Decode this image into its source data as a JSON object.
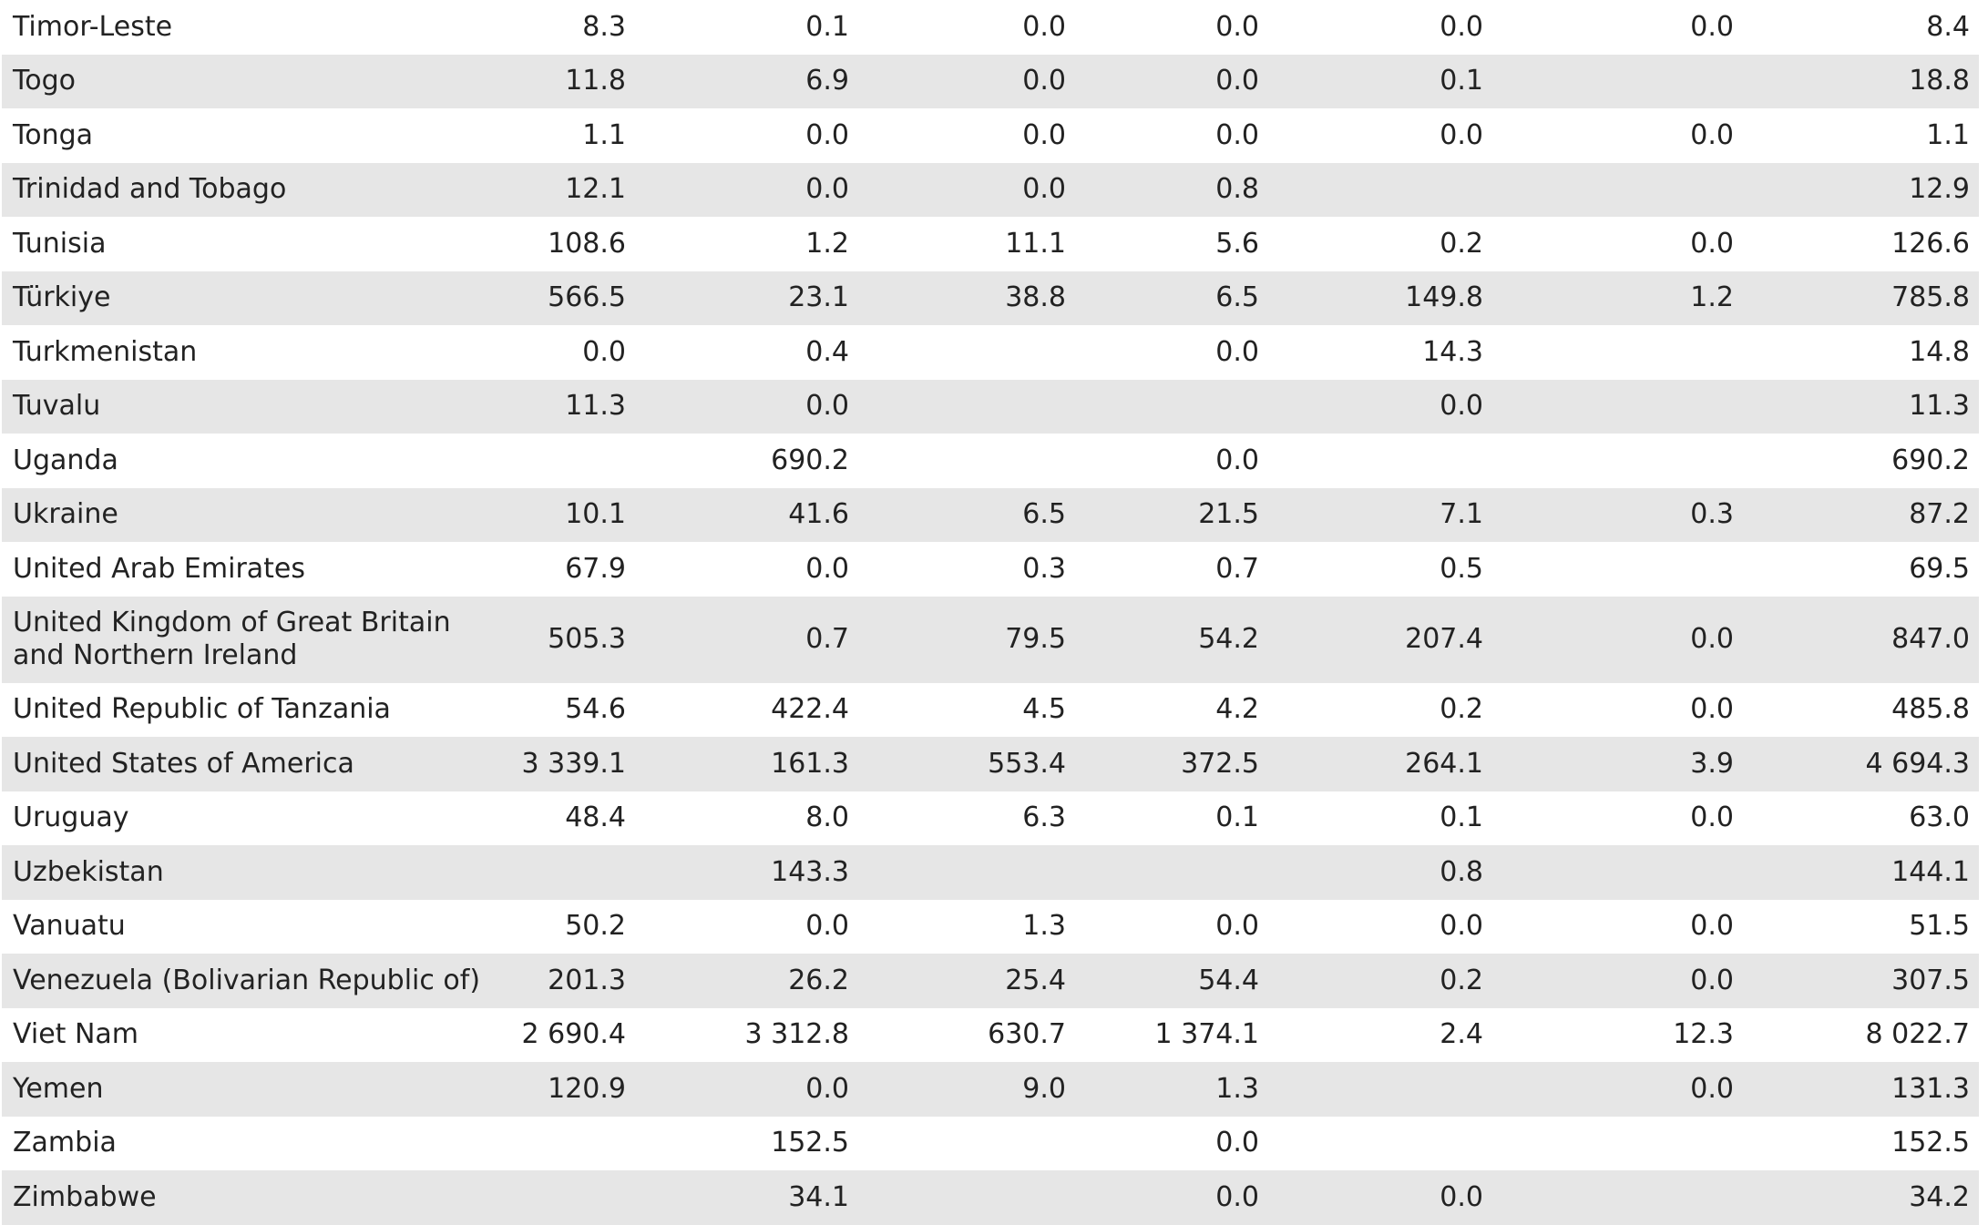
{
  "rows": [
    {
      "country": "Timor-Leste",
      "values": [
        "8.3",
        "0.1",
        "0.0",
        "0.0",
        "0.0",
        "0.0",
        "8.4"
      ]
    },
    {
      "country": "Togo",
      "values": [
        "11.8",
        "6.9",
        "0.0",
        "0.0",
        "0.1",
        "",
        "18.8"
      ]
    },
    {
      "country": "Tonga",
      "values": [
        "1.1",
        "0.0",
        "0.0",
        "0.0",
        "0.0",
        "0.0",
        "1.1"
      ]
    },
    {
      "country": "Trinidad and Tobago",
      "values": [
        "12.1",
        "0.0",
        "0.0",
        "0.8",
        "",
        "",
        "12.9"
      ]
    },
    {
      "country": "Tunisia",
      "values": [
        "108.6",
        "1.2",
        "11.1",
        "5.6",
        "0.2",
        "0.0",
        "126.6"
      ]
    },
    {
      "country": "Türkiye",
      "values": [
        "566.5",
        "23.1",
        "38.8",
        "6.5",
        "149.8",
        "1.2",
        "785.8"
      ]
    },
    {
      "country": "Turkmenistan",
      "values": [
        "0.0",
        "0.4",
        "",
        "0.0",
        "14.3",
        "",
        "14.8"
      ]
    },
    {
      "country": "Tuvalu",
      "values": [
        "11.3",
        "0.0",
        "",
        "",
        "0.0",
        "",
        "11.3"
      ]
    },
    {
      "country": "Uganda",
      "values": [
        "",
        "690.2",
        "",
        "0.0",
        "",
        "",
        "690.2"
      ]
    },
    {
      "country": "Ukraine",
      "values": [
        "10.1",
        "41.6",
        "6.5",
        "21.5",
        "7.1",
        "0.3",
        "87.2"
      ]
    },
    {
      "country": "United Arab Emirates",
      "values": [
        "67.9",
        "0.0",
        "0.3",
        "0.7",
        "0.5",
        "",
        "69.5"
      ]
    },
    {
      "country": "United Kingdom of Great Britain and Northern Ireland",
      "values": [
        "505.3",
        "0.7",
        "79.5",
        "54.2",
        "207.4",
        "0.0",
        "847.0"
      ]
    },
    {
      "country": "United Republic of Tanzania",
      "values": [
        "54.6",
        "422.4",
        "4.5",
        "4.2",
        "0.2",
        "0.0",
        "485.8"
      ]
    },
    {
      "country": "United States of America",
      "values": [
        "3 339.1",
        "161.3",
        "553.4",
        "372.5",
        "264.1",
        "3.9",
        "4 694.3"
      ]
    },
    {
      "country": "Uruguay",
      "values": [
        "48.4",
        "8.0",
        "6.3",
        "0.1",
        "0.1",
        "0.0",
        "63.0"
      ]
    },
    {
      "country": "Uzbekistan",
      "values": [
        "",
        "143.3",
        "",
        "",
        "0.8",
        "",
        "144.1"
      ]
    },
    {
      "country": "Vanuatu",
      "values": [
        "50.2",
        "0.0",
        "1.3",
        "0.0",
        "0.0",
        "0.0",
        "51.5"
      ]
    },
    {
      "country": "Venezuela (Bolivarian Republic of)",
      "values": [
        "201.3",
        "26.2",
        "25.4",
        "54.4",
        "0.2",
        "0.0",
        "307.5"
      ]
    },
    {
      "country": "Viet Nam",
      "values": [
        "2 690.4",
        "3 312.8",
        "630.7",
        "1 374.1",
        "2.4",
        "12.3",
        "8 022.7"
      ]
    },
    {
      "country": "Yemen",
      "values": [
        "120.9",
        "0.0",
        "9.0",
        "1.3",
        "",
        "0.0",
        "131.3"
      ]
    },
    {
      "country": "Zambia",
      "values": [
        "",
        "152.5",
        "",
        "0.0",
        "",
        "",
        "152.5"
      ]
    },
    {
      "country": "Zimbabwe",
      "values": [
        "",
        "34.1",
        "",
        "0.0",
        "0.0",
        "",
        "34.2"
      ]
    }
  ]
}
